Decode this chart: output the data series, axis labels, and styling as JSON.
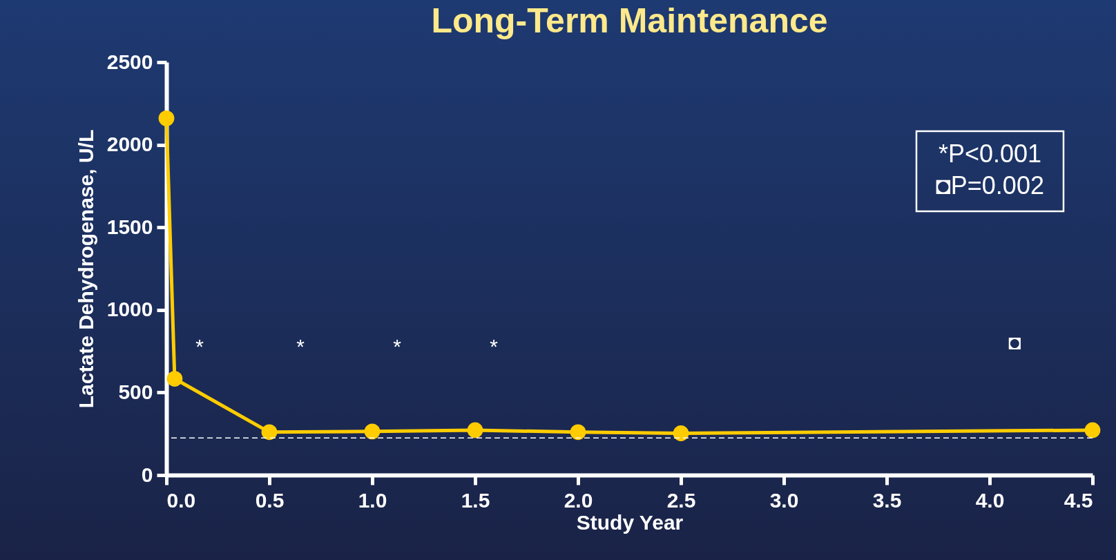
{
  "chart_data": {
    "type": "line",
    "title": "Long-Term Maintenance",
    "xlabel": "Study Year",
    "ylabel": "Lactate Dehydrogenase, U/L",
    "x": [
      0,
      0.04,
      0.5,
      1.0,
      1.5,
      2.0,
      2.5,
      4.5
    ],
    "series": [
      {
        "color": "#ffcc00",
        "values": [
          2160,
          583,
          260,
          264,
          272,
          260,
          253,
          272
        ]
      }
    ],
    "marker": "circle",
    "line_style": "solid",
    "grid": false,
    "xlim": [
      0,
      4.5
    ],
    "xticks": [
      {
        "value": 0,
        "label": "0.0"
      },
      {
        "value": 0.5,
        "label": "0.5"
      },
      {
        "value": 1,
        "label": "1.0"
      },
      {
        "value": 1.5,
        "label": "1.5"
      },
      {
        "value": 2,
        "label": "2.0"
      },
      {
        "value": 2.5,
        "label": "2.5"
      },
      {
        "value": 3,
        "label": "3.0"
      },
      {
        "value": 3.5,
        "label": "3.5"
      },
      {
        "value": 4,
        "label": "4.0"
      },
      {
        "value": 4.5,
        "label": "4.5"
      }
    ],
    "ylim": [
      0,
      2500
    ],
    "yticks": [
      0,
      500,
      1000,
      1500,
      2000,
      2500
    ],
    "ref_lines": [
      {
        "axis": "y",
        "value": 225,
        "color": "#ffffff",
        "line_style": "dashed"
      }
    ],
    "annotations": [
      "*",
      "*",
      "*",
      "*",
      "◘",
      "*P<0.001",
      "◘P=0.002"
    ]
  }
}
